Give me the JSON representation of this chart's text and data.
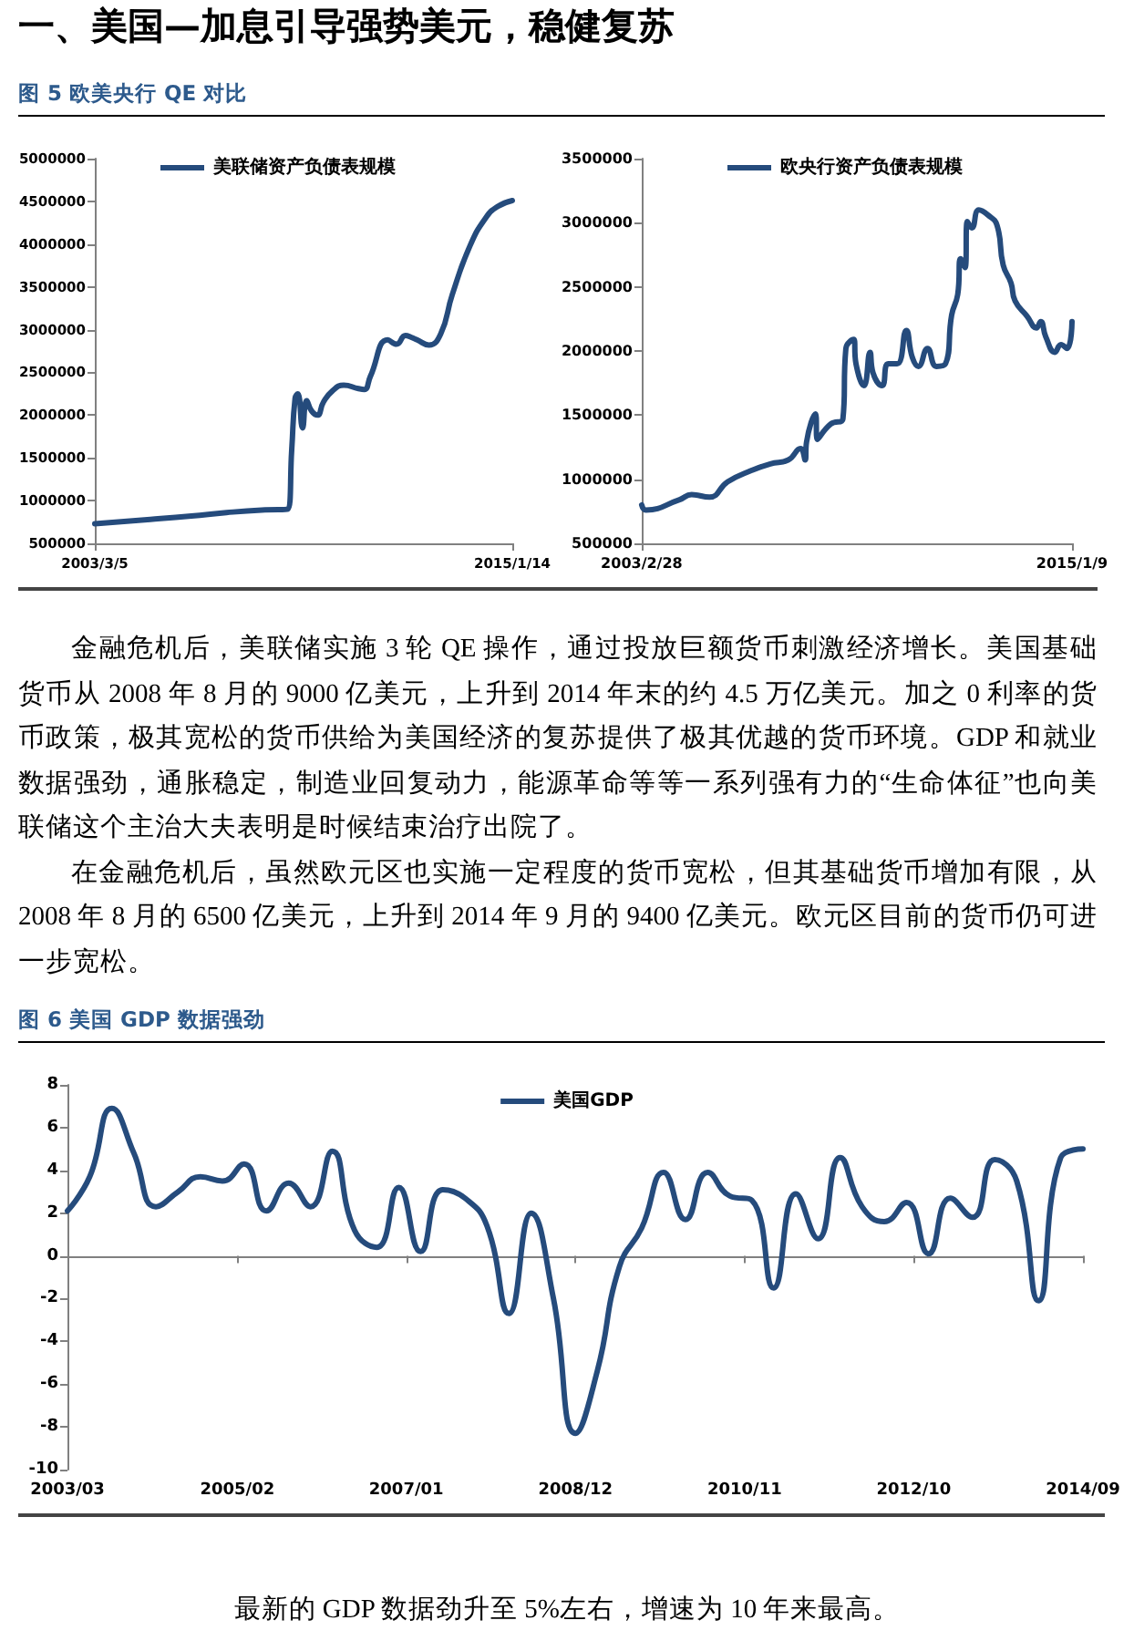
{
  "chart_data": [
    {
      "type": "line",
      "title": "图 5 欧美央行 QE 对比",
      "annotations": [
        "一、美国—加息引导强势美元，稳健复苏"
      ],
      "x": [
        "2003-03-05",
        "2004-10-01",
        "2005-12-01",
        "2006-12-01",
        "2007-12-01",
        "2008-08-27",
        "2008-10-08",
        "2008-11-12",
        "2008-12-10",
        "2009-01-28",
        "2009-03-12",
        "2009-05-01",
        "2009-07-01",
        "2009-09-01",
        "2009-12-01",
        "2010-04-01",
        "2010-09-01",
        "2010-11-01",
        "2011-01-01",
        "2011-07-01",
        "2011-10-01",
        "2012-01-01",
        "2012-03-01",
        "2012-05-01",
        "2012-09-01",
        "2013-01-01",
        "2013-05-01",
        "2013-11-01",
        "2014-04-15",
        "2014-08-15",
        "2015-01-14"
      ],
      "series": [
        {
          "name": "美联储资产负债表规模",
          "color": "#254b7c",
          "values": [
            730000,
            780000,
            820000,
            860000,
            890000,
            900000,
            1600000,
            2200000,
            2250000,
            1850000,
            2170000,
            2050000,
            2000000,
            2150000,
            2280000,
            2350000,
            2310000,
            2300000,
            2450000,
            2880000,
            2830000,
            2930000,
            2910000,
            2880000,
            2820000,
            2950000,
            3410000,
            3980000,
            4310000,
            4440000,
            4510000
          ]
        }
      ],
      "xlim": [
        "2003-03-05",
        "2015-01-14"
      ],
      "xticks": [
        {
          "value": "2003-03-05",
          "label": "2003/3/5"
        },
        {
          "value": "2015-01-14",
          "label": "2015/1/14"
        }
      ],
      "ylim": [
        500000,
        5000000
      ],
      "yticks": [
        500000,
        1000000,
        1500000,
        2000000,
        2500000,
        3000000,
        3500000,
        4000000,
        4500000,
        5000000
      ],
      "legend": "top",
      "marker": "none"
    },
    {
      "type": "line",
      "annotations": [
        "金融危机后，美联储实施 3 轮 QE 操作，通过投放巨额货币刺激经济增长。美国基础货币从 2008 年 8 月的 9000 亿美元，上升到 2014 年末的约 4.5 万亿美元。加之 0 利率的货币政策，极其宽松的货币供给为美国经济的复苏提供了极其优越的货币环境。GDP 和就业数据强劲，通胀稳定，制造业回复动力，能源革命等等一系列强有力的“生命体征”也向美联储这个主治大夫表明是时候结束治疗出院了。",
        "在金融危机后，虽然欧元区也实施一定程度的货币宽松，但其基础货币增加有限，从 2008 年 8 月的 6500 亿美元，上升到 2014 年 9 月的 9400 亿美元。欧元区目前的货币仍可进一步宽松。"
      ],
      "x": [
        "2003-02-28",
        "2003-04-12",
        "2004-03-15",
        "2004-07-15",
        "2005-01-10",
        "2005-07-12",
        "2006-03-15",
        "2006-09-15",
        "2007-03-15",
        "2007-07-15",
        "2007-09-01",
        "2007-09-15",
        "2007-12-14",
        "2008-01-01",
        "2008-05-15",
        "2008-09-15",
        "2008-10-15",
        "2009-01-01",
        "2009-01-25",
        "2009-04-15",
        "2009-06-15",
        "2009-07-15",
        "2009-10-15",
        "2009-12-15",
        "2010-03-15",
        "2010-06-15",
        "2010-08-15",
        "2010-10-15",
        "2011-01-15",
        "2011-04-15",
        "2011-07-15",
        "2011-09-15",
        "2011-11-15",
        "2011-12-15",
        "2012-01-28",
        "2012-02-20",
        "2012-04-05",
        "2012-06-15",
        "2012-09-15",
        "2012-12-15",
        "2013-02-15",
        "2013-05-05",
        "2013-06-15",
        "2013-10-15",
        "2014-01-15",
        "2014-02-28",
        "2014-04-20",
        "2014-07-20",
        "2014-09-20",
        "2014-11-20",
        "2015-01-09"
      ],
      "series": [
        {
          "name": "欧央行资产负债表规模",
          "color": "#254b7c",
          "values": [
            800000,
            760000,
            840000,
            880000,
            860000,
            980000,
            1070000,
            1120000,
            1150000,
            1240000,
            1150000,
            1290000,
            1510000,
            1310000,
            1430000,
            1470000,
            2020000,
            2090000,
            1900000,
            1730000,
            1990000,
            1830000,
            1730000,
            1900000,
            1900000,
            2160000,
            1950000,
            1880000,
            2020000,
            1880000,
            1900000,
            2280000,
            2440000,
            2720000,
            2650000,
            3010000,
            2960000,
            3100000,
            3060000,
            2980000,
            2670000,
            2530000,
            2390000,
            2270000,
            2180000,
            2230000,
            2110000,
            1990000,
            2050000,
            2020000,
            2230000
          ]
        }
      ],
      "xlim": [
        "2003-02-28",
        "2015-01-09"
      ],
      "xticks": [
        {
          "value": "2003-02-28",
          "label": "2003/2/28"
        },
        {
          "value": "2015-01-09",
          "label": "2015/1/9"
        }
      ],
      "ylim": [
        500000,
        3500000
      ],
      "yticks": [
        500000,
        1000000,
        1500000,
        2000000,
        2500000,
        3000000,
        3500000
      ],
      "legend": "top",
      "marker": "none"
    },
    {
      "type": "line",
      "title": "图 6 美国 GDP 数据强劲",
      "annotations": [
        "最新的 GDP 数据劲升至 5%左右，增速为 10 年来最高。"
      ],
      "x": [
        "2003-03",
        "2003-06",
        "2003-09",
        "2003-12",
        "2004-03",
        "2004-06",
        "2004-09",
        "2004-12",
        "2005-03",
        "2005-06",
        "2005-09",
        "2005-12",
        "2006-03",
        "2006-06",
        "2006-09",
        "2006-12",
        "2007-03",
        "2007-06",
        "2007-09",
        "2007-12",
        "2008-03",
        "2008-06",
        "2008-09",
        "2008-12",
        "2009-03",
        "2009-06",
        "2009-09",
        "2009-12",
        "2010-03",
        "2010-06",
        "2010-09",
        "2010-12",
        "2011-03",
        "2011-06",
        "2011-09",
        "2011-12",
        "2012-03",
        "2012-06",
        "2012-09",
        "2012-12",
        "2013-03",
        "2013-06",
        "2013-09",
        "2013-12",
        "2014-03",
        "2014-06",
        "2014-09"
      ],
      "series": [
        {
          "name": "美国GDP",
          "color": "#254b7c",
          "values": [
            2.1,
            3.7,
            6.9,
            4.8,
            2.3,
            3.0,
            3.7,
            3.5,
            4.3,
            2.1,
            3.4,
            2.3,
            4.9,
            1.2,
            0.4,
            3.2,
            0.2,
            3.1,
            2.7,
            1.4,
            -2.7,
            2.0,
            -2.0,
            -8.3,
            -5.4,
            -0.5,
            1.3,
            3.9,
            1.7,
            3.9,
            2.8,
            2.6,
            -1.5,
            2.9,
            0.8,
            4.6,
            2.3,
            1.6,
            2.5,
            0.1,
            2.7,
            1.8,
            4.5,
            3.5,
            -2.1,
            4.6,
            5.0
          ]
        }
      ],
      "xlim": [
        "2003-03",
        "2014-09"
      ],
      "xticks": [
        {
          "value": "2003-03",
          "label": "2003/03"
        },
        {
          "value": "2005-02",
          "label": "2005/02"
        },
        {
          "value": "2007-01",
          "label": "2007/01"
        },
        {
          "value": "2008-12",
          "label": "2008/12"
        },
        {
          "value": "2010-11",
          "label": "2010/11"
        },
        {
          "value": "2012-10",
          "label": "2012/10"
        },
        {
          "value": "2014-09",
          "label": "2014/09"
        }
      ],
      "ylim": [
        -10,
        8
      ],
      "yticks": [
        -10,
        -8,
        -6,
        -4,
        -2,
        0,
        2,
        4,
        6,
        8
      ],
      "legend": "top",
      "marker": "none"
    }
  ]
}
